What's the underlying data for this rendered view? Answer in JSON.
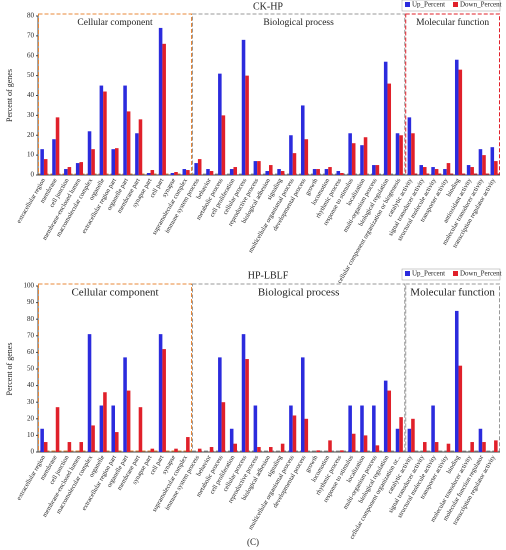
{
  "chart_data": [
    {
      "type": "bar",
      "title": "CK-HP",
      "y_label": "Percent of genes",
      "ylim": [
        0,
        80
      ],
      "yticks": [
        0,
        10,
        20,
        30,
        40,
        50,
        60,
        70,
        80
      ],
      "legend": "top-right",
      "series": [
        {
          "name": "Up_Percent",
          "color": "#2b2bdd"
        },
        {
          "name": "Down_Percent",
          "color": "#e0202a"
        }
      ],
      "groups": [
        {
          "name": "Cellular component",
          "color": "#e8883a",
          "categories": [
            "extracellular region",
            "membrane",
            "cell junction",
            "membrane-enclosed lumen",
            "macromolecular complex",
            "organelle",
            "extracellular region part",
            "organelle part",
            "membrane part",
            "synapse part",
            "cell part",
            "synapse",
            "supramolecular complex"
          ],
          "series": [
            {
              "values": [
                13,
                18,
                3,
                6,
                22,
                45,
                13,
                45,
                21,
                1,
                74,
                1,
                3
              ]
            },
            {
              "values": [
                8,
                29,
                4,
                6.5,
                13,
                42,
                13.5,
                32,
                28,
                2.5,
                66,
                1.5,
                2.5
              ]
            }
          ]
        },
        {
          "name": "Biological process",
          "color": "#999999",
          "categories": [
            "immune system process",
            "behavior",
            "metabolic process",
            "cell proliferation",
            "cellular process",
            "reproductive process",
            "biological adhesion",
            "signaling",
            "multicellular organismal process",
            "developmental process",
            "growth",
            "locomotion",
            "rhythmic process",
            "response to stimulus",
            "localization",
            "multi-organism process",
            "biological regulation",
            "cellular component organization or biogenesis"
          ],
          "series": [
            {
              "values": [
                6,
                3,
                51,
                3,
                68,
                7,
                2,
                3,
                20,
                35,
                3,
                3,
                2,
                21,
                15,
                5,
                57,
                21
              ]
            },
            {
              "values": [
                8,
                2,
                30,
                4,
                50,
                7,
                5,
                2,
                11,
                18,
                3,
                4,
                1,
                16,
                19,
                5,
                46,
                20
              ]
            }
          ]
        },
        {
          "name": "Molecular function",
          "color": "#e0202a",
          "categories": [
            "catalytic activity",
            "signal transducer activity",
            "structural molecule activity",
            "transporter activity",
            "binding",
            "antioxidant activity",
            "molecular transducer activity",
            "transcription regulator activity"
          ],
          "series": [
            {
              "values": [
                29,
                5,
                4,
                3,
                58,
                5,
                13,
                14
              ]
            },
            {
              "values": [
                21,
                4,
                3,
                6,
                53,
                4,
                10,
                7
              ]
            }
          ]
        }
      ]
    },
    {
      "type": "bar",
      "title": "HP-LBLF",
      "y_label": "Percent of genes",
      "ylim": [
        0,
        100
      ],
      "yticks": [
        0,
        10,
        20,
        30,
        40,
        50,
        60,
        70,
        80,
        90,
        100
      ],
      "legend": "top-right",
      "series": [
        {
          "name": "Up_Percent",
          "color": "#2b2bdd"
        },
        {
          "name": "Down_Percent",
          "color": "#e0202a"
        }
      ],
      "groups": [
        {
          "name": "Cellular component",
          "color": "#e8883a",
          "categories": [
            "extracellular region",
            "membrane",
            "cell junction",
            "membrane-enclosed lumen",
            "macromolecular complex",
            "organelle",
            "extracellular region part",
            "organelle part",
            "membrane part",
            "synapse part",
            "cell part",
            "synapse",
            "supramolecular complex"
          ],
          "series": [
            {
              "values": [
                14,
                0,
                0,
                0,
                71,
                28,
                28,
                57,
                0,
                0,
                71,
                0,
                0
              ]
            },
            {
              "values": [
                6,
                27,
                6,
                6,
                16,
                36,
                12,
                37,
                27,
                2,
                62,
                2,
                9
              ]
            }
          ]
        },
        {
          "name": "Biological process",
          "color": "#999999",
          "categories": [
            "immune system process",
            "behavior",
            "metabolic process",
            "cell proliferation",
            "cellular process",
            "reproductive process",
            "biological adhesion",
            "signaling",
            "multicellular organismal process",
            "developmental process",
            "growth",
            "locomotion",
            "rhythmic process",
            "response to stimulus",
            "localization",
            "multi-organism process",
            "biological regulation",
            "cellular component organization or..."
          ],
          "series": [
            {
              "values": [
                0,
                0,
                57,
                14,
                71,
                28,
                0,
                0,
                28,
                57,
                0,
                0,
                0,
                28,
                28,
                28,
                43,
                14
              ]
            },
            {
              "values": [
                2,
                3,
                30,
                5,
                56,
                3,
                3,
                5,
                22,
                20,
                1,
                7,
                1,
                11,
                10,
                4,
                37,
                21
              ]
            }
          ]
        },
        {
          "name": "Molecular function",
          "color": "#999999",
          "categories": [
            "catalytic activity",
            "signal transducer activity",
            "structural molecule activity",
            "transporter activity",
            "binding",
            "molecular transducer activity",
            "molecular function regulator",
            "transcription regulator activity"
          ],
          "series": [
            {
              "values": [
                14,
                0,
                28,
                0,
                85,
                0,
                14,
                0
              ]
            },
            {
              "values": [
                20,
                6,
                6,
                5,
                52,
                6,
                6,
                7
              ]
            }
          ]
        }
      ]
    }
  ],
  "caption": "(C)"
}
